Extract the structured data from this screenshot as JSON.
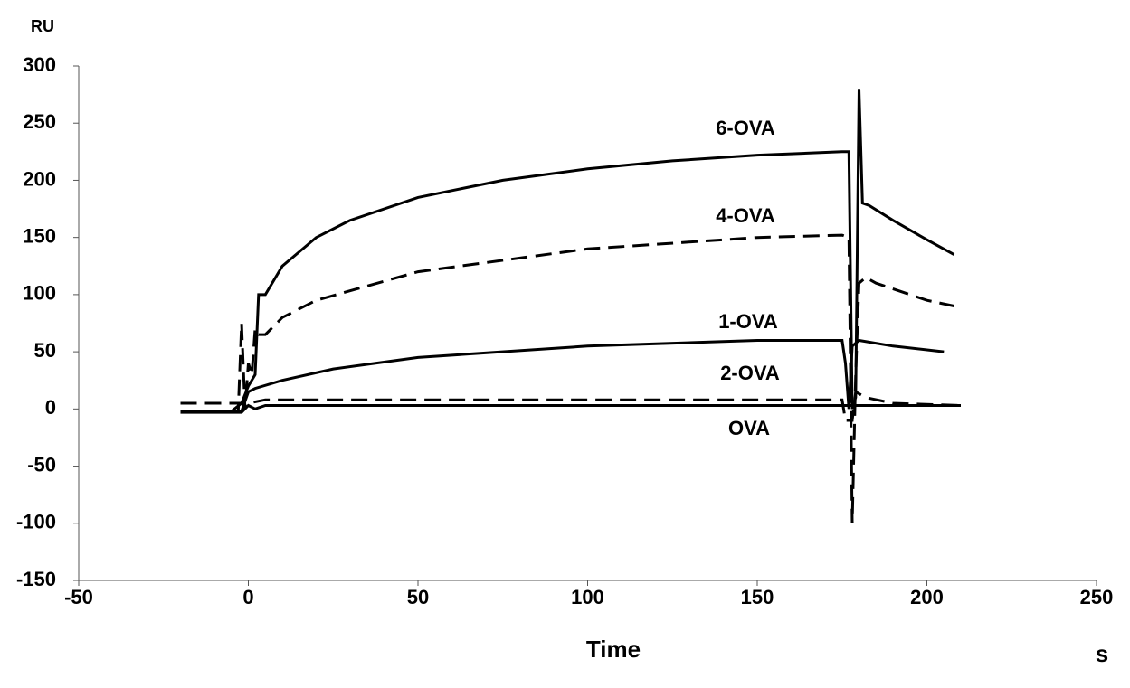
{
  "chart_data": {
    "type": "line",
    "y_label": "RU",
    "x_label": "Time",
    "x_unit": "s",
    "xlim": [
      -50,
      250
    ],
    "xticks": [
      -50,
      0,
      50,
      100,
      150,
      200,
      250
    ],
    "ylim": [
      -150,
      300
    ],
    "yticks": [
      -150,
      -100,
      -50,
      0,
      50,
      100,
      150,
      200,
      250,
      300
    ],
    "series": [
      {
        "name": "6-OVA",
        "color": "#000000",
        "style": "solid",
        "x": [
          -20,
          -5,
          -2,
          0,
          2,
          3,
          5,
          10,
          20,
          30,
          50,
          75,
          100,
          125,
          150,
          175,
          177,
          178,
          179,
          180,
          181,
          183,
          190,
          200,
          208
        ],
        "values": [
          -2,
          -2,
          5,
          20,
          30,
          100,
          100,
          125,
          150,
          165,
          185,
          200,
          210,
          217,
          222,
          225,
          225,
          0,
          10,
          280,
          180,
          178,
          165,
          148,
          135
        ]
      },
      {
        "name": "4-OVA",
        "color": "#000000",
        "style": "dashed",
        "x": [
          -20,
          -3,
          -2,
          -1,
          0,
          1,
          2,
          3,
          5,
          10,
          20,
          50,
          100,
          150,
          175,
          177,
          178,
          179,
          180,
          182,
          185,
          200,
          208
        ],
        "values": [
          -2,
          -2,
          75,
          0,
          40,
          30,
          70,
          65,
          65,
          80,
          95,
          120,
          140,
          150,
          152,
          150,
          -100,
          30,
          110,
          115,
          110,
          95,
          90
        ]
      },
      {
        "name": "1-OVA",
        "color": "#000000",
        "style": "solid",
        "x": [
          -20,
          -2,
          0,
          2,
          10,
          25,
          50,
          100,
          150,
          175,
          176,
          177,
          178,
          180,
          190,
          205
        ],
        "values": [
          -2,
          -2,
          15,
          18,
          25,
          35,
          45,
          55,
          60,
          60,
          40,
          0,
          55,
          60,
          55,
          50
        ]
      },
      {
        "name": "2-OVA",
        "color": "#000000",
        "style": "dashed",
        "x": [
          -20,
          0,
          5,
          10,
          50,
          100,
          175,
          176,
          178,
          179,
          182,
          190,
          210
        ],
        "values": [
          5,
          5,
          8,
          8,
          8,
          8,
          8,
          -10,
          -10,
          15,
          10,
          5,
          3
        ]
      },
      {
        "name": "OVA",
        "color": "#000000",
        "style": "solid",
        "x": [
          -20,
          -2,
          0,
          2,
          5,
          100,
          210
        ],
        "values": [
          -3,
          -3,
          3,
          0,
          3,
          3,
          3
        ]
      }
    ]
  }
}
